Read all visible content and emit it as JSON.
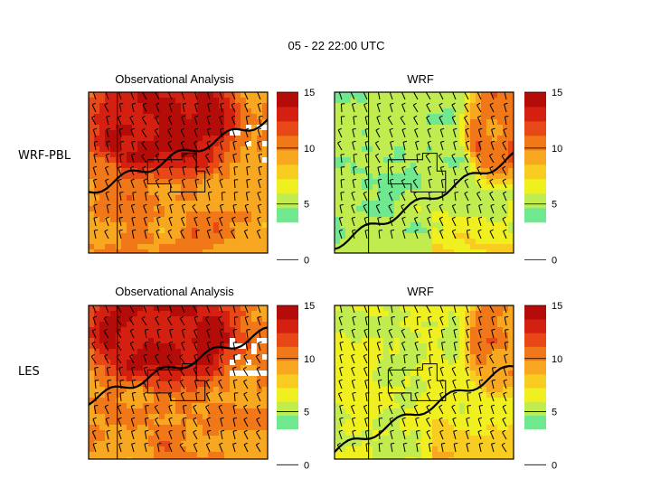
{
  "figure": {
    "title": "05 - 22  22:00 UTC",
    "row_labels": [
      "WRF-PBL",
      "LES"
    ]
  },
  "colors": {
    "scale": [
      "#ffffff",
      "#40f0c0",
      "#70e890",
      "#c0ec50",
      "#f0f020",
      "#f8cc20",
      "#f8a820",
      "#f07818",
      "#e84818",
      "#d42010",
      "#b40c08"
    ],
    "lines": "#000000"
  },
  "chart_data": [
    {
      "type": "heatmap",
      "row": "WRF-PBL",
      "title": "Observational Analysis",
      "colorbar": {
        "ticks": [
          "15",
          "10",
          "5",
          "0"
        ],
        "range": [
          0,
          15
        ]
      },
      "field": {
        "min": 0,
        "max": 15,
        "background_range": [
          7,
          11
        ],
        "high_region": [
          12,
          15
        ],
        "calm_patches": [
          3,
          6
        ]
      },
      "wind_barbs": true
    },
    {
      "type": "heatmap",
      "row": "WRF-PBL",
      "title": "WRF",
      "colorbar": {
        "ticks": [
          "15",
          "10",
          "5",
          "0"
        ],
        "range": [
          0,
          15
        ]
      },
      "field": {
        "min": 0,
        "max": 15,
        "background_range": [
          2,
          5
        ],
        "high_region": [
          8,
          12
        ],
        "calm_patches": [
          4,
          6
        ]
      },
      "wind_barbs": true
    },
    {
      "type": "heatmap",
      "row": "LES",
      "title": "Observational Analysis",
      "colorbar": {
        "ticks": [
          "15",
          "10",
          "5",
          "0"
        ],
        "range": [
          0,
          15
        ]
      },
      "field": {
        "min": 0,
        "max": 15,
        "background_range": [
          7,
          11
        ],
        "high_region": [
          12,
          15
        ],
        "calm_patches": [
          3,
          6
        ]
      },
      "wind_barbs": true
    },
    {
      "type": "heatmap",
      "row": "LES",
      "title": "WRF",
      "colorbar": {
        "ticks": [
          "15",
          "10",
          "5",
          "0"
        ],
        "range": [
          0,
          15
        ]
      },
      "field": {
        "min": 0,
        "max": 15,
        "background_range": [
          3,
          6
        ],
        "high_region": [
          8,
          11
        ],
        "calm_patches": [
          4,
          6
        ]
      },
      "wind_barbs": true
    }
  ]
}
